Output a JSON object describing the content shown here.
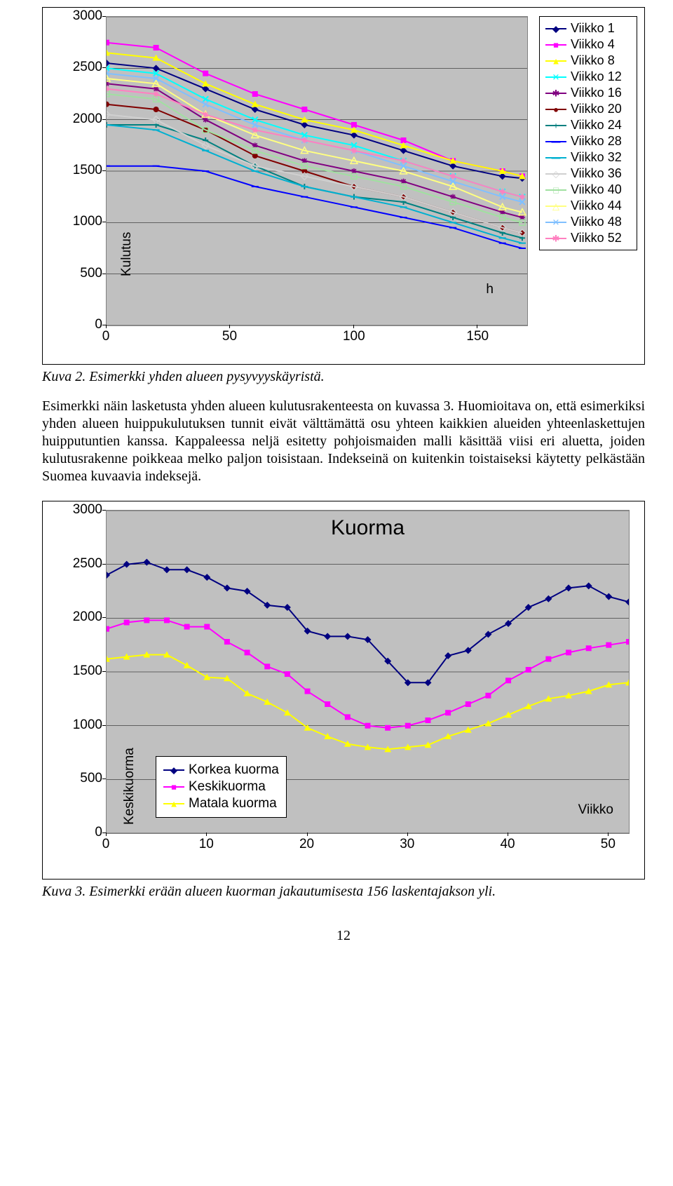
{
  "chart1": {
    "type": "line",
    "y_axis_label": "Kulutus",
    "x_inplot_label": "h",
    "y_ticks": [
      0,
      500,
      1000,
      1500,
      2000,
      2500,
      3000
    ],
    "x_ticks": [
      0,
      50,
      100,
      150
    ],
    "xlim": [
      0,
      170
    ],
    "ylim": [
      0,
      3000
    ],
    "background_color": "#c0c0c0",
    "series": [
      {
        "label": "Viikko 1",
        "color": "#000080",
        "marker": "◆"
      },
      {
        "label": "Viikko 4",
        "color": "#ff00ff",
        "marker": "■"
      },
      {
        "label": "Viikko 8",
        "color": "#ffff00",
        "marker": "▲"
      },
      {
        "label": "Viikko 12",
        "color": "#00ffff",
        "marker": "✕"
      },
      {
        "label": "Viikko 16",
        "color": "#800080",
        "marker": "✱"
      },
      {
        "label": "Viikko 20",
        "color": "#800000",
        "marker": "●"
      },
      {
        "label": "Viikko 24",
        "color": "#008080",
        "marker": "+"
      },
      {
        "label": "Viikko 28",
        "color": "#0000ff",
        "marker": "—"
      },
      {
        "label": "Viikko 32",
        "color": "#00b0d0",
        "marker": "—"
      },
      {
        "label": "Viikko 36",
        "color": "#d0d0d0",
        "marker": "◇"
      },
      {
        "label": "Viikko 40",
        "color": "#a0e0a0",
        "marker": "□"
      },
      {
        "label": "Viikko 44",
        "color": "#ffff80",
        "marker": "△"
      },
      {
        "label": "Viikko 48",
        "color": "#80c0ff",
        "marker": "✕"
      },
      {
        "label": "Viikko 52",
        "color": "#ff80c0",
        "marker": "✱"
      }
    ],
    "series_data": {
      "Viikko 1": [
        [
          0,
          2550
        ],
        [
          20,
          2500
        ],
        [
          40,
          2300
        ],
        [
          60,
          2100
        ],
        [
          80,
          1950
        ],
        [
          100,
          1850
        ],
        [
          120,
          1700
        ],
        [
          140,
          1550
        ],
        [
          160,
          1450
        ],
        [
          168,
          1430
        ]
      ],
      "Viikko 4": [
        [
          0,
          2750
        ],
        [
          20,
          2700
        ],
        [
          40,
          2450
        ],
        [
          60,
          2250
        ],
        [
          80,
          2100
        ],
        [
          100,
          1950
        ],
        [
          120,
          1800
        ],
        [
          140,
          1600
        ],
        [
          160,
          1500
        ],
        [
          168,
          1450
        ]
      ],
      "Viikko 8": [
        [
          0,
          2650
        ],
        [
          20,
          2600
        ],
        [
          40,
          2350
        ],
        [
          60,
          2150
        ],
        [
          80,
          2000
        ],
        [
          100,
          1900
        ],
        [
          120,
          1750
        ],
        [
          140,
          1600
        ],
        [
          160,
          1500
        ],
        [
          168,
          1450
        ]
      ],
      "Viikko 12": [
        [
          0,
          2500
        ],
        [
          20,
          2450
        ],
        [
          40,
          2200
        ],
        [
          60,
          2000
        ],
        [
          80,
          1850
        ],
        [
          100,
          1750
        ],
        [
          120,
          1600
        ],
        [
          140,
          1450
        ],
        [
          160,
          1300
        ],
        [
          168,
          1250
        ]
      ],
      "Viikko 16": [
        [
          0,
          2350
        ],
        [
          20,
          2300
        ],
        [
          40,
          2000
        ],
        [
          60,
          1750
        ],
        [
          80,
          1600
        ],
        [
          100,
          1500
        ],
        [
          120,
          1400
        ],
        [
          140,
          1250
        ],
        [
          160,
          1100
        ],
        [
          168,
          1050
        ]
      ],
      "Viikko 20": [
        [
          0,
          2150
        ],
        [
          20,
          2100
        ],
        [
          40,
          1900
        ],
        [
          60,
          1650
        ],
        [
          80,
          1500
        ],
        [
          100,
          1350
        ],
        [
          120,
          1250
        ],
        [
          140,
          1100
        ],
        [
          160,
          950
        ],
        [
          168,
          900
        ]
      ],
      "Viikko 24": [
        [
          0,
          1950
        ],
        [
          20,
          1950
        ],
        [
          40,
          1800
        ],
        [
          60,
          1550
        ],
        [
          80,
          1350
        ],
        [
          100,
          1250
        ],
        [
          120,
          1200
        ],
        [
          140,
          1050
        ],
        [
          160,
          900
        ],
        [
          168,
          850
        ]
      ],
      "Viikko 28": [
        [
          0,
          1550
        ],
        [
          20,
          1550
        ],
        [
          40,
          1500
        ],
        [
          60,
          1350
        ],
        [
          80,
          1250
        ],
        [
          100,
          1150
        ],
        [
          120,
          1050
        ],
        [
          140,
          950
        ],
        [
          160,
          800
        ],
        [
          168,
          750
        ]
      ],
      "Viikko 32": [
        [
          0,
          1950
        ],
        [
          20,
          1900
        ],
        [
          40,
          1700
        ],
        [
          60,
          1500
        ],
        [
          80,
          1350
        ],
        [
          100,
          1250
        ],
        [
          120,
          1150
        ],
        [
          140,
          1000
        ],
        [
          160,
          850
        ],
        [
          168,
          800
        ]
      ],
      "Viikko 36": [
        [
          0,
          2050
        ],
        [
          20,
          2000
        ],
        [
          40,
          1750
        ],
        [
          60,
          1550
        ],
        [
          80,
          1450
        ],
        [
          100,
          1350
        ],
        [
          120,
          1250
        ],
        [
          140,
          1100
        ],
        [
          160,
          950
        ],
        [
          168,
          900
        ]
      ],
      "Viikko 40": [
        [
          0,
          2250
        ],
        [
          20,
          2200
        ],
        [
          40,
          1900
        ],
        [
          60,
          1700
        ],
        [
          80,
          1550
        ],
        [
          100,
          1450
        ],
        [
          120,
          1350
        ],
        [
          140,
          1200
        ],
        [
          160,
          1050
        ],
        [
          168,
          1000
        ]
      ],
      "Viikko 44": [
        [
          0,
          2400
        ],
        [
          20,
          2350
        ],
        [
          40,
          2050
        ],
        [
          60,
          1850
        ],
        [
          80,
          1700
        ],
        [
          100,
          1600
        ],
        [
          120,
          1500
        ],
        [
          140,
          1350
        ],
        [
          160,
          1150
        ],
        [
          168,
          1100
        ]
      ],
      "Viikko 48": [
        [
          0,
          2450
        ],
        [
          20,
          2400
        ],
        [
          40,
          2150
        ],
        [
          60,
          1950
        ],
        [
          80,
          1800
        ],
        [
          100,
          1700
        ],
        [
          120,
          1550
        ],
        [
          140,
          1400
        ],
        [
          160,
          1250
        ],
        [
          168,
          1200
        ]
      ],
      "Viikko 52": [
        [
          0,
          2300
        ],
        [
          20,
          2250
        ],
        [
          40,
          2050
        ],
        [
          60,
          1900
        ],
        [
          80,
          1800
        ],
        [
          100,
          1700
        ],
        [
          120,
          1600
        ],
        [
          140,
          1450
        ],
        [
          160,
          1300
        ],
        [
          168,
          1250
        ]
      ]
    }
  },
  "caption1": "Kuva 2. Esimerkki yhden alueen pysyvyyskäyristä.",
  "paragraph": "Esimerkki näin lasketusta yhden alueen kulutusrakenteesta on kuvassa 3. Huomioitava on, että esimerkiksi yhden alueen huippukulutuksen tunnit eivät välttämättä osu yhteen kaikkien alueiden yhteenlaskettujen huipputuntien kanssa. Kappaleessa neljä esitetty pohjoismaiden malli käsittää viisi eri aluetta, joiden kulutusrakenne poikkeaa melko paljon toisistaan. Indekseinä on kuitenkin toistaiseksi käytetty pelkästään Suomea kuvaavia indeksejä.",
  "chart2": {
    "type": "line",
    "title": "Kuorma",
    "y_axis_label": "Keskikuorma",
    "x_inplot_label": "Viikko",
    "y_ticks": [
      0,
      500,
      1000,
      1500,
      2000,
      2500,
      3000
    ],
    "x_ticks": [
      0,
      10,
      20,
      30,
      40,
      50
    ],
    "xlim": [
      0,
      52
    ],
    "ylim": [
      0,
      3000
    ],
    "background_color": "#c0c0c0",
    "series": [
      {
        "label": "Korkea kuorma",
        "color": "#000080",
        "marker": "◆",
        "data": [
          [
            0,
            2400
          ],
          [
            2,
            2500
          ],
          [
            4,
            2520
          ],
          [
            6,
            2450
          ],
          [
            8,
            2450
          ],
          [
            10,
            2380
          ],
          [
            12,
            2280
          ],
          [
            14,
            2250
          ],
          [
            16,
            2120
          ],
          [
            18,
            2100
          ],
          [
            20,
            1880
          ],
          [
            22,
            1830
          ],
          [
            24,
            1830
          ],
          [
            26,
            1800
          ],
          [
            28,
            1600
          ],
          [
            30,
            1400
          ],
          [
            32,
            1400
          ],
          [
            34,
            1650
          ],
          [
            36,
            1700
          ],
          [
            38,
            1850
          ],
          [
            40,
            1950
          ],
          [
            42,
            2100
          ],
          [
            44,
            2180
          ],
          [
            46,
            2280
          ],
          [
            48,
            2300
          ],
          [
            50,
            2200
          ],
          [
            52,
            2150
          ]
        ]
      },
      {
        "label": "Keskikuorma",
        "color": "#ff00ff",
        "marker": "■",
        "data": [
          [
            0,
            1900
          ],
          [
            2,
            1960
          ],
          [
            4,
            1980
          ],
          [
            6,
            1980
          ],
          [
            8,
            1920
          ],
          [
            10,
            1920
          ],
          [
            12,
            1780
          ],
          [
            14,
            1680
          ],
          [
            16,
            1550
          ],
          [
            18,
            1480
          ],
          [
            20,
            1320
          ],
          [
            22,
            1200
          ],
          [
            24,
            1080
          ],
          [
            26,
            1000
          ],
          [
            28,
            980
          ],
          [
            30,
            1000
          ],
          [
            32,
            1050
          ],
          [
            34,
            1120
          ],
          [
            36,
            1200
          ],
          [
            38,
            1280
          ],
          [
            40,
            1420
          ],
          [
            42,
            1520
          ],
          [
            44,
            1620
          ],
          [
            46,
            1680
          ],
          [
            48,
            1720
          ],
          [
            50,
            1750
          ],
          [
            52,
            1780
          ]
        ]
      },
      {
        "label": "Matala kuorma",
        "color": "#ffff00",
        "marker": "▲",
        "data": [
          [
            0,
            1620
          ],
          [
            2,
            1640
          ],
          [
            4,
            1660
          ],
          [
            6,
            1660
          ],
          [
            8,
            1560
          ],
          [
            10,
            1450
          ],
          [
            12,
            1440
          ],
          [
            14,
            1300
          ],
          [
            16,
            1220
          ],
          [
            18,
            1120
          ],
          [
            20,
            980
          ],
          [
            22,
            900
          ],
          [
            24,
            830
          ],
          [
            26,
            800
          ],
          [
            28,
            780
          ],
          [
            30,
            800
          ],
          [
            32,
            820
          ],
          [
            34,
            900
          ],
          [
            36,
            960
          ],
          [
            38,
            1020
          ],
          [
            40,
            1100
          ],
          [
            42,
            1180
          ],
          [
            44,
            1250
          ],
          [
            46,
            1280
          ],
          [
            48,
            1320
          ],
          [
            50,
            1380
          ],
          [
            52,
            1400
          ]
        ]
      }
    ]
  },
  "caption2": "Kuva 3. Esimerkki erään alueen kuorman jakautumisesta 156 laskentajakson yli.",
  "page_number": "12"
}
